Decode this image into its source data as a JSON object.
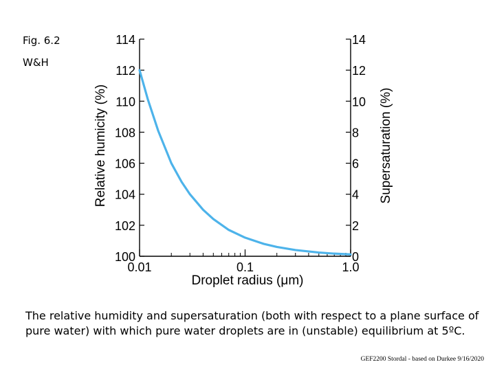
{
  "header": {
    "fig_label": "Fig. 6.2",
    "source_label": "W&H"
  },
  "chart_data": {
    "type": "line",
    "xscale": "log",
    "xlim": [
      0.01,
      1.0
    ],
    "ylim": [
      100,
      114
    ],
    "y2lim": [
      0,
      14
    ],
    "xlabel": "Droplet radius (μm)",
    "ylabel": "Relative humicity (%)",
    "y2label": "Supersaturation (%)",
    "x_ticks": [
      0.01,
      0.1,
      1.0
    ],
    "x_tick_labels": [
      "0.01",
      "0.1",
      "1.0"
    ],
    "y_ticks": [
      100,
      102,
      104,
      106,
      108,
      110,
      112,
      114
    ],
    "y_tick_labels": [
      "100",
      "102",
      "104",
      "106",
      "108",
      "110",
      "112",
      "114"
    ],
    "y2_ticks": [
      0,
      2,
      4,
      6,
      8,
      10,
      12,
      14
    ],
    "y2_tick_labels": [
      "0",
      "2",
      "4",
      "6",
      "8",
      "10",
      "12",
      "14"
    ],
    "series": [
      {
        "color": "#4db3ea",
        "x": [
          0.01,
          0.012,
          0.015,
          0.02,
          0.025,
          0.03,
          0.04,
          0.05,
          0.07,
          0.1,
          0.15,
          0.2,
          0.3,
          0.5,
          0.7,
          1.0
        ],
        "y": [
          112.0,
          110.1,
          108.1,
          106.0,
          104.8,
          104.0,
          103.0,
          102.4,
          101.7,
          101.2,
          100.8,
          100.6,
          100.4,
          100.24,
          100.17,
          100.12
        ]
      }
    ]
  },
  "caption": "The relative humidity and supersaturation (both with respect to a plane surface of pure water) with which pure water droplets are in (unstable) equilibrium at 5ºC.",
  "footer": "GEF2200 Stordal - based on Durkee 9/16/2020"
}
